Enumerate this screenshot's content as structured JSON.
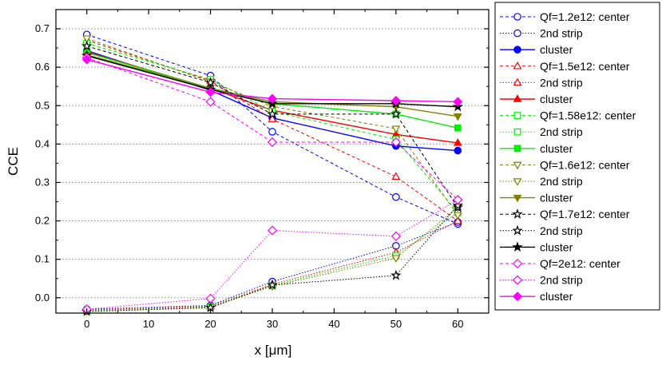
{
  "chart_data": {
    "type": "line",
    "title": "",
    "xlabel": "x [μm]",
    "ylabel": "CCE",
    "xlim": [
      -5,
      65
    ],
    "ylim": [
      -0.04,
      0.75
    ],
    "x_categories": [
      "0",
      "20",
      "30",
      "50",
      "60"
    ],
    "x_category_values": [
      0,
      20,
      30,
      50,
      60
    ],
    "x_ticks": [
      0,
      10,
      20,
      30,
      40,
      50,
      60
    ],
    "y_ticks": [
      0.0,
      0.1,
      0.2,
      0.3,
      0.4,
      0.5,
      0.6,
      0.7
    ],
    "y_tick_labels": [
      "0.0",
      "0.1",
      "0.2",
      "0.3",
      "0.4",
      "0.5",
      "0.6",
      "0.7"
    ],
    "grid": "horizontal dotted",
    "legend_position": "right",
    "series": [
      {
        "name": "Qf=1.2e12: center",
        "color": "#0000ff",
        "marker": "circle",
        "fill": "open",
        "line": "dash",
        "x": [
          0,
          20,
          30,
          50,
          60
        ],
        "values": [
          0.685,
          0.578,
          0.432,
          0.262,
          0.192
        ]
      },
      {
        "name": "2nd strip",
        "color": "#0000ff",
        "marker": "circle",
        "fill": "open",
        "line": "dot",
        "x": [
          0,
          20,
          30,
          50,
          60
        ],
        "values": [
          -0.03,
          -0.02,
          0.042,
          0.135,
          0.197
        ]
      },
      {
        "name": "cluster",
        "color": "#0000ff",
        "marker": "circle",
        "fill": "filled",
        "line": "solid",
        "x": [
          0,
          20,
          30,
          50,
          60
        ],
        "values": [
          0.643,
          0.54,
          0.468,
          0.395,
          0.383
        ]
      },
      {
        "name": "Qf=1.5e12: center",
        "color": "#ff0000",
        "marker": "triangle-up",
        "fill": "open",
        "line": "dash",
        "x": [
          0,
          20,
          30,
          50,
          60
        ],
        "values": [
          0.67,
          0.565,
          0.465,
          0.315,
          0.2
        ]
      },
      {
        "name": "2nd strip",
        "color": "#ff0000",
        "marker": "triangle-up",
        "fill": "open",
        "line": "dot",
        "x": [
          0,
          20,
          30,
          50,
          60
        ],
        "values": [
          -0.032,
          -0.022,
          0.035,
          0.118,
          0.2
        ]
      },
      {
        "name": "cluster",
        "color": "#ff0000",
        "marker": "triangle-up",
        "fill": "filled",
        "line": "solid",
        "x": [
          0,
          20,
          30,
          50,
          60
        ],
        "values": [
          0.64,
          0.545,
          0.488,
          0.425,
          0.403
        ]
      },
      {
        "name": "Qf=1.58e12: center",
        "color": "#00ee00",
        "marker": "square",
        "fill": "open",
        "line": "dash",
        "x": [
          0,
          20,
          30,
          50,
          60
        ],
        "values": [
          0.662,
          0.568,
          0.485,
          0.412,
          0.222
        ]
      },
      {
        "name": "2nd strip",
        "color": "#00ee00",
        "marker": "square",
        "fill": "open",
        "line": "dot",
        "x": [
          0,
          20,
          30,
          50,
          60
        ],
        "values": [
          -0.034,
          -0.024,
          0.032,
          0.11,
          0.222
        ]
      },
      {
        "name": "cluster",
        "color": "#00ee00",
        "marker": "square",
        "fill": "filled",
        "line": "solid",
        "x": [
          0,
          20,
          30,
          50,
          60
        ],
        "values": [
          0.638,
          0.545,
          0.505,
          0.478,
          0.442
        ]
      },
      {
        "name": "Qf=1.6e12: center",
        "color": "#808000",
        "marker": "triangle-down",
        "fill": "open",
        "line": "dash",
        "x": [
          0,
          20,
          30,
          50,
          60
        ],
        "values": [
          0.675,
          0.562,
          0.498,
          0.44,
          0.215
        ]
      },
      {
        "name": "2nd strip",
        "color": "#808000",
        "marker": "triangle-down",
        "fill": "open",
        "line": "dot",
        "x": [
          0,
          20,
          30,
          50,
          60
        ],
        "values": [
          -0.035,
          -0.025,
          0.03,
          0.103,
          0.235
        ]
      },
      {
        "name": "cluster",
        "color": "#808000",
        "marker": "triangle-down",
        "fill": "filled",
        "line": "solid",
        "x": [
          0,
          20,
          30,
          50,
          60
        ],
        "values": [
          0.632,
          0.545,
          0.51,
          0.497,
          0.472
        ]
      },
      {
        "name": "Qf=1.7e12: center",
        "color": "#000000",
        "marker": "star",
        "fill": "open",
        "line": "dash",
        "x": [
          0,
          20,
          30,
          50,
          60
        ],
        "values": [
          0.655,
          0.56,
          0.478,
          0.478,
          0.235
        ]
      },
      {
        "name": "2nd strip",
        "color": "#000000",
        "marker": "star",
        "fill": "open",
        "line": "dot",
        "x": [
          0,
          20,
          30,
          50,
          60
        ],
        "values": [
          -0.036,
          -0.026,
          0.033,
          0.058,
          0.24
        ]
      },
      {
        "name": "cluster",
        "color": "#000000",
        "marker": "star",
        "fill": "filled",
        "line": "solid",
        "x": [
          0,
          20,
          30,
          50,
          60
        ],
        "values": [
          0.63,
          0.542,
          0.505,
          0.505,
          0.497
        ]
      },
      {
        "name": "Qf=2e12: center",
        "color": "#ff00ff",
        "marker": "diamond",
        "fill": "open",
        "line": "dash",
        "x": [
          0,
          20,
          30,
          50,
          60
        ],
        "values": [
          0.625,
          0.51,
          0.405,
          0.405,
          0.255
        ]
      },
      {
        "name": "2nd strip",
        "color": "#ff00ff",
        "marker": "diamond",
        "fill": "open",
        "line": "dot",
        "x": [
          0,
          20,
          30,
          50,
          60
        ],
        "values": [
          -0.03,
          -0.002,
          0.175,
          0.16,
          0.255
        ]
      },
      {
        "name": "cluster",
        "color": "#ff00ff",
        "marker": "diamond",
        "fill": "filled",
        "line": "solid",
        "x": [
          0,
          20,
          30,
          50,
          60
        ],
        "values": [
          0.62,
          0.535,
          0.518,
          0.513,
          0.51
        ]
      }
    ]
  }
}
